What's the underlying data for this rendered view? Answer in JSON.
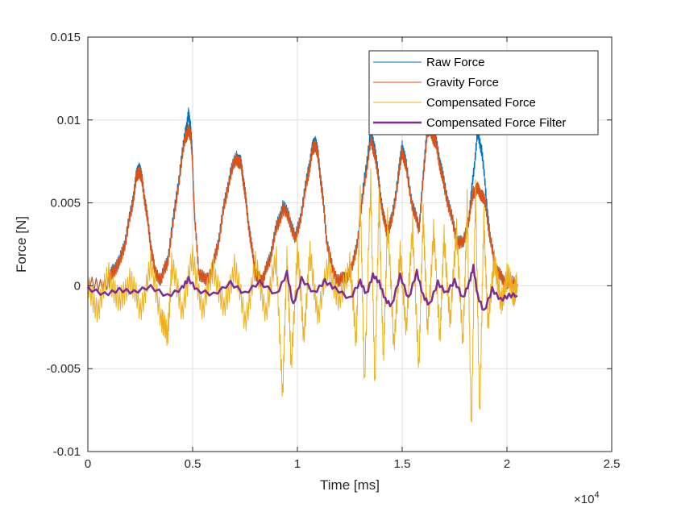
{
  "chart_data": {
    "type": "line",
    "xlabel": "Time [ms]",
    "ylabel": "Force [N]",
    "xlim": [
      0,
      25000
    ],
    "ylim": [
      -0.01,
      0.015
    ],
    "x_exponent_label": "×10",
    "x_exponent_power": "4",
    "xticks": [
      0,
      5000,
      10000,
      15000,
      20000,
      25000
    ],
    "xtick_labels": [
      "0",
      "0.5",
      "1",
      "1.5",
      "2",
      "2.5"
    ],
    "yticks": [
      -0.01,
      -0.005,
      0,
      0.005,
      0.01,
      0.015
    ],
    "ytick_labels": [
      "-0.01",
      "-0.005",
      "0",
      "0.005",
      "0.01",
      "0.015"
    ],
    "grid": true,
    "legend_position": "top-right",
    "series": [
      {
        "name": "Raw Force",
        "color": "#0072BD",
        "width": 1,
        "x": [
          0,
          1000,
          1200,
          1500,
          1800,
          2100,
          2300,
          2450,
          2600,
          2800,
          3000,
          3200,
          3500,
          3800,
          4100,
          4400,
          4650,
          4800,
          4900,
          5000,
          5100,
          5300,
          5600,
          5900,
          6200,
          6500,
          6800,
          7100,
          7300,
          7450,
          7600,
          7800,
          8000,
          8200,
          8400,
          8700,
          9000,
          9300,
          9600,
          9900,
          10200,
          10500,
          10700,
          10850,
          11000,
          11200,
          11400,
          11700,
          12000,
          12300,
          12600,
          12900,
          13200,
          13500,
          13700,
          13900,
          14100,
          14300,
          14500,
          14800,
          15000,
          15200,
          15500,
          15800,
          16000,
          16200,
          16400,
          16600,
          16800,
          17000,
          17300,
          17600,
          17900,
          18200,
          18400,
          18600,
          18800,
          19000,
          19200,
          19500,
          19800,
          20100,
          20500
        ],
        "values": [
          0.0001,
          0.0002,
          0.001,
          0.0014,
          0.0028,
          0.0048,
          0.0065,
          0.0072,
          0.0063,
          0.0045,
          0.0025,
          0.0008,
          0.0004,
          0.0015,
          0.0042,
          0.007,
          0.0092,
          0.0103,
          0.0097,
          0.0075,
          0.004,
          0.0008,
          0.0003,
          0.0008,
          0.0025,
          0.0048,
          0.0068,
          0.0078,
          0.0074,
          0.0062,
          0.0045,
          0.0025,
          0.0008,
          0.0003,
          0.0005,
          0.0018,
          0.0035,
          0.0048,
          0.0042,
          0.0028,
          0.0045,
          0.0068,
          0.0082,
          0.0088,
          0.0078,
          0.0055,
          0.0028,
          0.0008,
          0.0003,
          0.0005,
          0.001,
          0.003,
          0.0065,
          0.0092,
          0.0083,
          0.0062,
          0.0042,
          0.0032,
          0.004,
          0.0065,
          0.0085,
          0.0072,
          0.0048,
          0.0035,
          0.0065,
          0.0098,
          0.0095,
          0.0088,
          0.0075,
          0.0062,
          0.0045,
          0.0028,
          0.0025,
          0.0042,
          0.0068,
          0.0092,
          0.0082,
          0.0055,
          0.0028,
          0.001,
          0.0003,
          0.0002,
          0.0001
        ]
      },
      {
        "name": "Gravity Force",
        "color": "#D95319",
        "width": 1,
        "x": [
          0,
          1000,
          1200,
          1500,
          1800,
          2100,
          2300,
          2450,
          2600,
          2800,
          3000,
          3200,
          3500,
          3800,
          4100,
          4400,
          4650,
          4800,
          4900,
          5000,
          5100,
          5300,
          5600,
          5900,
          6200,
          6500,
          6800,
          7100,
          7300,
          7450,
          7600,
          7800,
          8000,
          8200,
          8400,
          8700,
          9000,
          9300,
          9600,
          9900,
          10200,
          10500,
          10700,
          10850,
          11000,
          11200,
          11400,
          11700,
          12000,
          12300,
          12600,
          12900,
          13200,
          13500,
          13700,
          13900,
          14100,
          14300,
          14500,
          14800,
          15000,
          15200,
          15500,
          15800,
          16000,
          16200,
          16400,
          16600,
          16800,
          17000,
          17300,
          17600,
          17900,
          18200,
          18400,
          18600,
          18800,
          19000,
          19200,
          19500,
          19800,
          20100,
          20500
        ],
        "values": [
          0.0001,
          0.0002,
          0.0009,
          0.0013,
          0.0027,
          0.0047,
          0.0064,
          0.007,
          0.0062,
          0.0044,
          0.0024,
          0.0008,
          0.0004,
          0.0014,
          0.004,
          0.0068,
          0.009,
          0.0093,
          0.0092,
          0.0072,
          0.0039,
          0.0008,
          0.0003,
          0.0008,
          0.0024,
          0.0047,
          0.0067,
          0.0077,
          0.0073,
          0.0061,
          0.0044,
          0.0024,
          0.0008,
          0.0003,
          0.0005,
          0.0017,
          0.0034,
          0.0046,
          0.0041,
          0.0027,
          0.0044,
          0.0066,
          0.008,
          0.0086,
          0.0076,
          0.0054,
          0.0027,
          0.0008,
          0.0003,
          0.0005,
          0.001,
          0.0029,
          0.0062,
          0.0087,
          0.008,
          0.006,
          0.0041,
          0.0031,
          0.0039,
          0.0063,
          0.0082,
          0.007,
          0.0047,
          0.0034,
          0.0063,
          0.0094,
          0.0092,
          0.0086,
          0.0073,
          0.006,
          0.0044,
          0.0027,
          0.0025,
          0.0041,
          0.0057,
          0.0058,
          0.0055,
          0.0048,
          0.0027,
          0.001,
          0.0003,
          0.0002,
          0.0001
        ]
      },
      {
        "name": "Compensated Force",
        "color": "#EDB120",
        "width": 1,
        "x": [
          0,
          500,
          1000,
          1500,
          2000,
          2500,
          3000,
          3500,
          3800,
          4000,
          4500,
          5000,
          5500,
          6000,
          6500,
          7000,
          7500,
          8000,
          8500,
          9000,
          9300,
          9500,
          9700,
          10000,
          10300,
          10600,
          11000,
          11500,
          12000,
          12500,
          12800,
          13000,
          13200,
          13500,
          13700,
          13900,
          14100,
          14300,
          14600,
          14900,
          15200,
          15500,
          15800,
          16000,
          16200,
          16500,
          16800,
          17000,
          17300,
          17600,
          17900,
          18100,
          18300,
          18500,
          18700,
          18900,
          19100,
          19400,
          19700,
          20000,
          20300,
          20500
        ],
        "values": [
          0,
          -0.0015,
          0.0008,
          -0.0012,
          0.0005,
          -0.0015,
          0.0012,
          -0.0018,
          -0.0032,
          0.0012,
          -0.0014,
          0.0016,
          -0.0015,
          0.0012,
          -0.0016,
          0.0013,
          -0.0022,
          0.0012,
          -0.0015,
          0.0016,
          -0.0068,
          0.002,
          -0.005,
          0.0022,
          -0.003,
          0.0018,
          -0.0018,
          0.0014,
          -0.0012,
          0.0015,
          -0.0035,
          0.0052,
          -0.0058,
          0.0062,
          -0.0062,
          0.0055,
          -0.0048,
          0.004,
          -0.0035,
          0.0018,
          -0.0025,
          0.0035,
          -0.0052,
          0.0045,
          -0.0028,
          0.0032,
          -0.003,
          0.0028,
          -0.0022,
          0.0035,
          -0.0038,
          0.0052,
          -0.0088,
          0.0055,
          -0.0078,
          0.004,
          -0.0025,
          0.0018,
          -0.0012,
          0.0006,
          -0.0004,
          0
        ]
      },
      {
        "name": "Compensated Force Filter",
        "color": "#7E2F8E",
        "width": 2.5,
        "x": [
          0,
          800,
          1500,
          2200,
          3000,
          3800,
          4500,
          4800,
          5200,
          6000,
          6800,
          7500,
          8200,
          9000,
          9500,
          9800,
          10200,
          10800,
          11300,
          11800,
          12500,
          13000,
          13300,
          13600,
          13900,
          14200,
          14500,
          14900,
          15300,
          15700,
          16000,
          16300,
          16700,
          17100,
          17500,
          17900,
          18200,
          18400,
          18600,
          18900,
          19300,
          19700,
          20100,
          20500
        ],
        "values": [
          -0.0002,
          -0.0005,
          -0.0002,
          -0.0004,
          -0.0001,
          -0.0006,
          -0.0001,
          0.0004,
          -0.0003,
          -0.0005,
          0.0002,
          -0.0005,
          0.0002,
          -0.0005,
          0.0008,
          -0.0012,
          0.0004,
          -0.0004,
          0.0003,
          -0.0002,
          -0.0008,
          0.0003,
          -0.0005,
          0.0006,
          0.0002,
          -0.0008,
          -0.0012,
          0.0006,
          -0.0008,
          0.0009,
          -0.0006,
          -0.0012,
          0.0002,
          -0.0004,
          0.0003,
          -0.0008,
          0.0002,
          0.0012,
          -0.0006,
          -0.0016,
          -0.0002,
          -0.0008,
          -0.0006,
          -0.0006
        ]
      }
    ]
  }
}
